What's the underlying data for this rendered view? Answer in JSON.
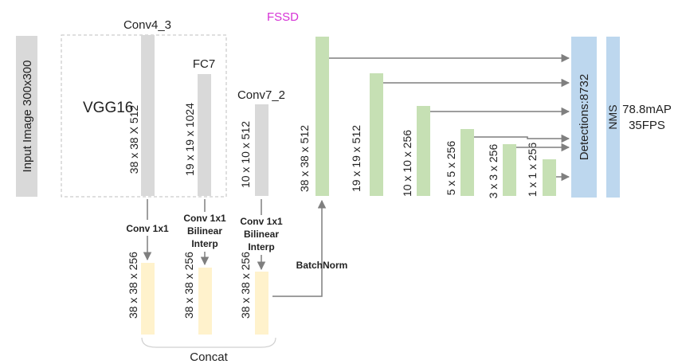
{
  "title": "FSSD",
  "colors": {
    "title": "#d633d6",
    "gray_bar": "#d9d9d9",
    "green_bar": "#c6e0b4",
    "yellow_bar": "#fff2cc",
    "blue_bar": "#bdd7ee",
    "arrow": "#7f7f7f"
  },
  "input_label": "Input Image 300x300",
  "vgg_label": "VGG16",
  "layers": {
    "conv4_3": {
      "name": "Conv4_3",
      "shape": "38 x 38 X 512"
    },
    "fc7": {
      "name": "FC7",
      "shape": "19 x 19 x 1024"
    },
    "conv7_2": {
      "name": "Conv7_2",
      "shape": "10 x 10 x 512"
    }
  },
  "ops": {
    "conv1x1": "Conv 1x1",
    "conv1x1_bilinear_1": [
      "Conv 1x1",
      "Bilinear",
      "Interp"
    ],
    "conv1x1_bilinear_2": [
      "Conv 1x1",
      "Bilinear",
      "Interp"
    ],
    "batchnorm": "BatchNorm",
    "concat": "Concat"
  },
  "concat_shapes": [
    "38 x 38 x 256",
    "38 x 38 x 256",
    "38 x 38 x 256"
  ],
  "pyramid_shapes": [
    "38 x 38 x 512",
    "19 x 19 x 512",
    "10 x 10 x 256",
    "5 x 5 x 256",
    "3 x 3 x 256",
    "1 x 1 x 256"
  ],
  "detections_label": "Detections:8732",
  "nms_label": "NMS",
  "result": {
    "map": "78.8mAP",
    "fps": "35FPS"
  }
}
